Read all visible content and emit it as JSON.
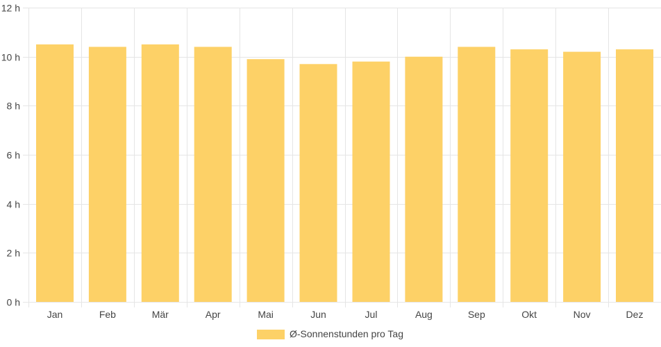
{
  "chart_data": {
    "type": "bar",
    "categories": [
      "Jan",
      "Feb",
      "Mär",
      "Apr",
      "Mai",
      "Jun",
      "Jul",
      "Aug",
      "Sep",
      "Okt",
      "Nov",
      "Dez"
    ],
    "series": [
      {
        "name": "Ø-Sonnenstunden pro Tag",
        "values": [
          10.5,
          10.4,
          10.5,
          10.4,
          9.9,
          9.7,
          9.8,
          10.0,
          10.4,
          10.3,
          10.2,
          10.3
        ]
      }
    ],
    "y_ticks": [
      "0 h",
      "2 h",
      "4 h",
      "6 h",
      "8 h",
      "10 h",
      "12 h"
    ],
    "ylim": [
      0,
      12
    ],
    "grid": true,
    "legend_position": "bottom-center",
    "colors": {
      "bar": "#fdd167",
      "grid": "#e5e5e5",
      "axis_text": "#444444"
    }
  }
}
